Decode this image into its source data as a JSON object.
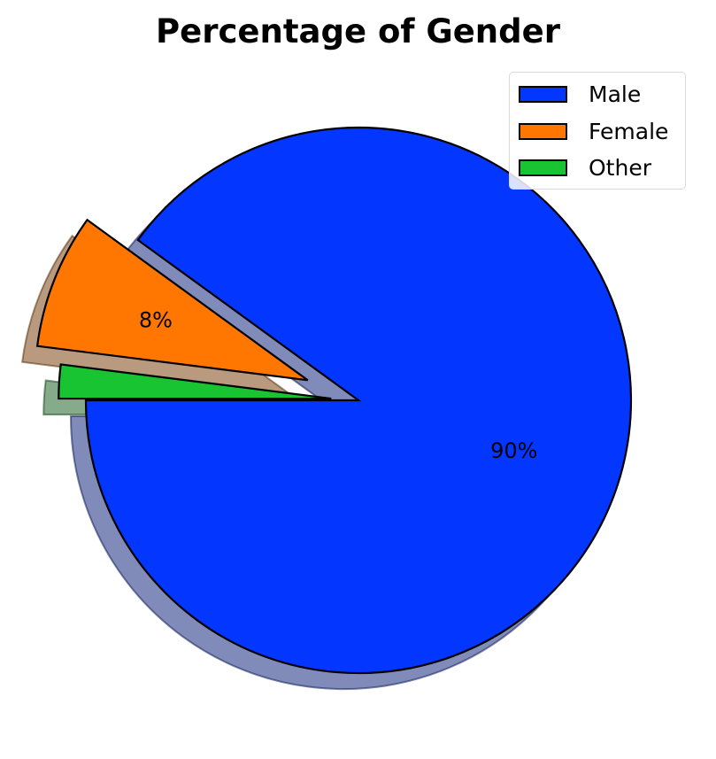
{
  "chart_data": {
    "type": "pie",
    "title": "Percentage of Gender",
    "labels": [
      "Male",
      "Female",
      "Other"
    ],
    "values": [
      90,
      8,
      2
    ],
    "data_labels": [
      "90%",
      "8%",
      ""
    ],
    "colors": [
      "#0336ff",
      "#ff7700",
      "#18c431"
    ],
    "explode": [
      0,
      0.2,
      0.1
    ],
    "startangle_deg": 180,
    "shadow": true,
    "legend_loc": "upper-right"
  }
}
